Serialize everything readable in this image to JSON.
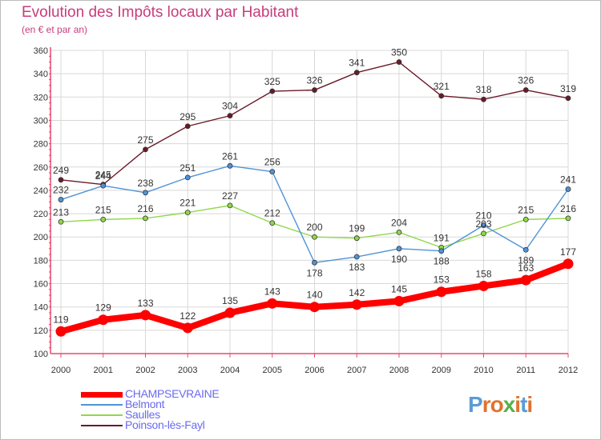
{
  "title": "Evolution des Impôts locaux par Habitant",
  "subtitle": "(en € et par an)",
  "logo_text": "Proxiti",
  "colors": {
    "title": "#c83c7c",
    "axis": "#e8486e",
    "grid": "#d8d8d8",
    "legend_text": "#6a6af0",
    "logo": [
      "#5b9bd5",
      "#e0732e",
      "#e0732e",
      "#5ab04a",
      "#e0732e",
      "#5b9bd5",
      "#e0732e"
    ]
  },
  "chart_data": {
    "type": "line",
    "title": "Evolution des Impôts locaux par Habitant",
    "subtitle": "(en € et par an)",
    "xlabel": "",
    "ylabel": "",
    "categories": [
      "2000",
      "2001",
      "2002",
      "2003",
      "2004",
      "2005",
      "2006",
      "2007",
      "2008",
      "2009",
      "2010",
      "2011",
      "2012"
    ],
    "ylim": [
      100,
      360
    ],
    "yticks": [
      100,
      120,
      140,
      160,
      180,
      200,
      220,
      240,
      260,
      280,
      300,
      320,
      340,
      360
    ],
    "grid": true,
    "legend_position": "bottom-left",
    "series": [
      {
        "name": "CHAMPSEVRAINE",
        "color": "#ff0000",
        "values": [
          119,
          129,
          133,
          122,
          135,
          143,
          140,
          142,
          145,
          153,
          158,
          163,
          177
        ]
      },
      {
        "name": "Belmont",
        "color": "#4f94d6",
        "values": [
          232,
          244,
          238,
          251,
          261,
          256,
          178,
          183,
          190,
          188,
          210,
          189,
          241
        ]
      },
      {
        "name": "Saulles",
        "color": "#8fd84a",
        "values": [
          213,
          215,
          216,
          221,
          227,
          212,
          200,
          199,
          204,
          191,
          203,
          215,
          216
        ]
      },
      {
        "name": "Poinson-lès-Fayl",
        "color": "#6a1a28",
        "values": [
          249,
          245,
          275,
          295,
          304,
          325,
          326,
          341,
          350,
          321,
          318,
          326,
          319
        ]
      }
    ]
  }
}
